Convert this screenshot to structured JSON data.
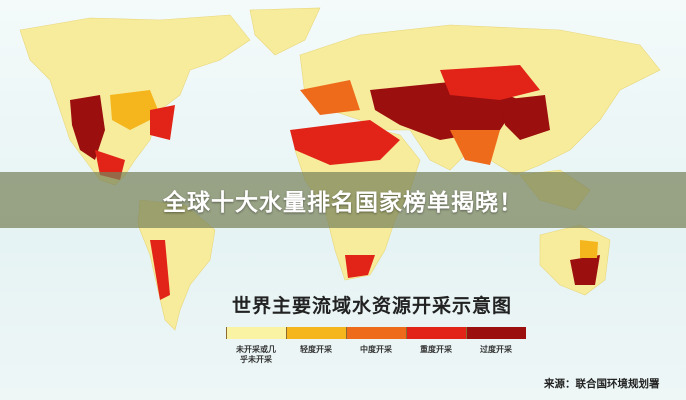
{
  "banner": {
    "title": "全球十大水量排名国家榜单揭晓！"
  },
  "legend": {
    "title": "世界主要流域水资源开采示意图",
    "items": [
      {
        "label": "未开采或几乎未开采",
        "color": "#fbf3a4"
      },
      {
        "label": "轻度开采",
        "color": "#f5b51d"
      },
      {
        "label": "中度开采",
        "color": "#ef6b1c"
      },
      {
        "label": "重度开采",
        "color": "#e22418"
      },
      {
        "label": "过度开采",
        "color": "#9c0f0f"
      }
    ]
  },
  "source": "来源：联合国环境规划署"
}
